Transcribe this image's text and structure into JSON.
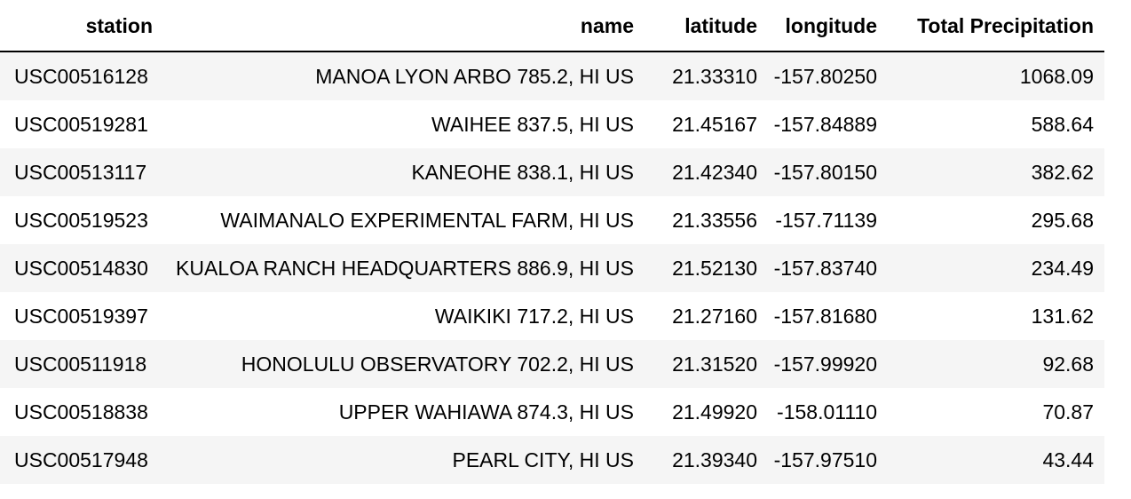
{
  "table": {
    "columns": [
      "station",
      "name",
      "latitude",
      "longitude",
      "Total Precipitation"
    ],
    "rows": [
      [
        "USC00516128",
        "MANOA LYON ARBO 785.2, HI US",
        "21.33310",
        "-157.80250",
        "1068.09"
      ],
      [
        "USC00519281",
        "WAIHEE 837.5, HI US",
        "21.45167",
        "-157.84889",
        "588.64"
      ],
      [
        "USC00513117",
        "KANEOHE 838.1, HI US",
        "21.42340",
        "-157.80150",
        "382.62"
      ],
      [
        "USC00519523",
        "WAIMANALO EXPERIMENTAL FARM, HI US",
        "21.33556",
        "-157.71139",
        "295.68"
      ],
      [
        "USC00514830",
        "KUALOA RANCH HEADQUARTERS 886.9, HI US",
        "21.52130",
        "-157.83740",
        "234.49"
      ],
      [
        "USC00519397",
        "WAIKIKI 717.2, HI US",
        "21.27160",
        "-157.81680",
        "131.62"
      ],
      [
        "USC00511918",
        "HONOLULU OBSERVATORY 702.2, HI US",
        "21.31520",
        "-157.99920",
        "92.68"
      ],
      [
        "USC00518838",
        "UPPER WAHIAWA 874.3, HI US",
        "21.49920",
        "-158.01110",
        "70.87"
      ],
      [
        "USC00517948",
        "PEARL CITY, HI US",
        "21.39340",
        "-157.97510",
        "43.44"
      ]
    ]
  },
  "colors": {
    "stripe": "#f5f5f5",
    "background": "#ffffff",
    "header_rule": "#000000"
  }
}
